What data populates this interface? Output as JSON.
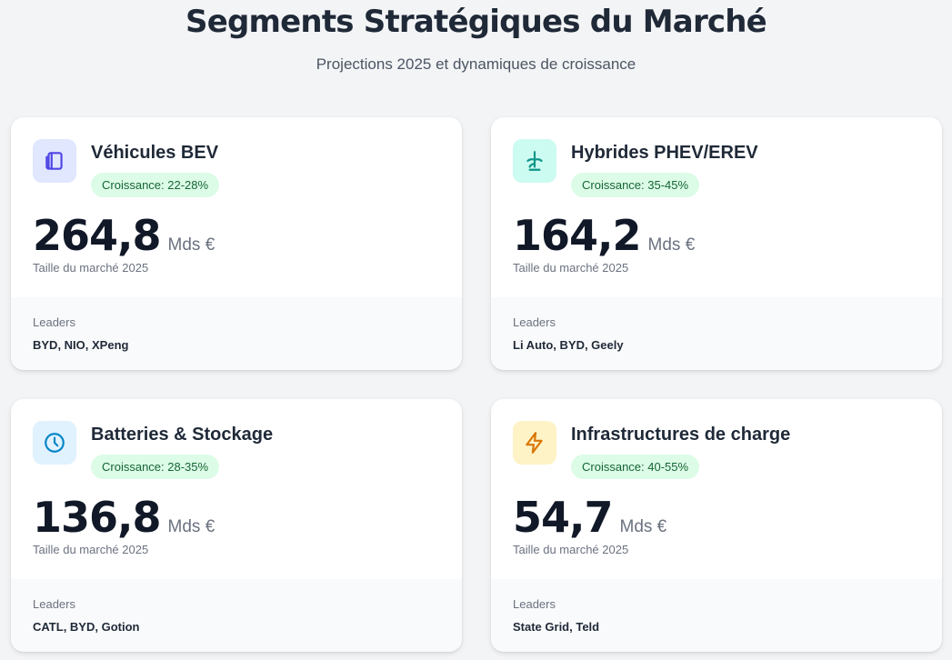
{
  "header": {
    "title": "Segments Stratégiques du Marché",
    "subtitle": "Projections 2025 et dynamiques de croissance"
  },
  "cards": [
    {
      "name": "Véhicules BEV",
      "growth": "Croissance: 22-28%",
      "value": "264,8",
      "unit": "Mds €",
      "caption": "Taille du marché 2025",
      "leaders_label": "Leaders",
      "leaders": "BYD, NIO, XPeng",
      "icon": "car-icon",
      "icon_color": "#4f46e5",
      "icon_bg": "#e0e7ff"
    },
    {
      "name": "Hybrides PHEV/EREV",
      "growth": "Croissance: 35-45%",
      "value": "164,2",
      "unit": "Mds €",
      "caption": "Taille du marché 2025",
      "leaders_label": "Leaders",
      "leaders": "Li Auto, BYD, Geely",
      "icon": "hybrid-plant-icon",
      "icon_color": "#0d9488",
      "icon_bg": "#ccfbf1"
    },
    {
      "name": "Batteries & Stockage",
      "growth": "Croissance: 28-35%",
      "value": "136,8",
      "unit": "Mds €",
      "caption": "Taille du marché 2025",
      "leaders_label": "Leaders",
      "leaders": "CATL, BYD, Gotion",
      "icon": "clock-icon",
      "icon_color": "#0284c7",
      "icon_bg": "#e0f2fe"
    },
    {
      "name": "Infrastructures de charge",
      "growth": "Croissance: 40-55%",
      "value": "54,7",
      "unit": "Mds €",
      "caption": "Taille du marché 2025",
      "leaders_label": "Leaders",
      "leaders": "State Grid, Teld",
      "icon": "lightning-icon",
      "icon_color": "#d97706",
      "icon_bg": "#fef3c7"
    }
  ],
  "colors": {
    "growth_badge_bg": "#dcfce7",
    "growth_badge_text": "#166534"
  }
}
